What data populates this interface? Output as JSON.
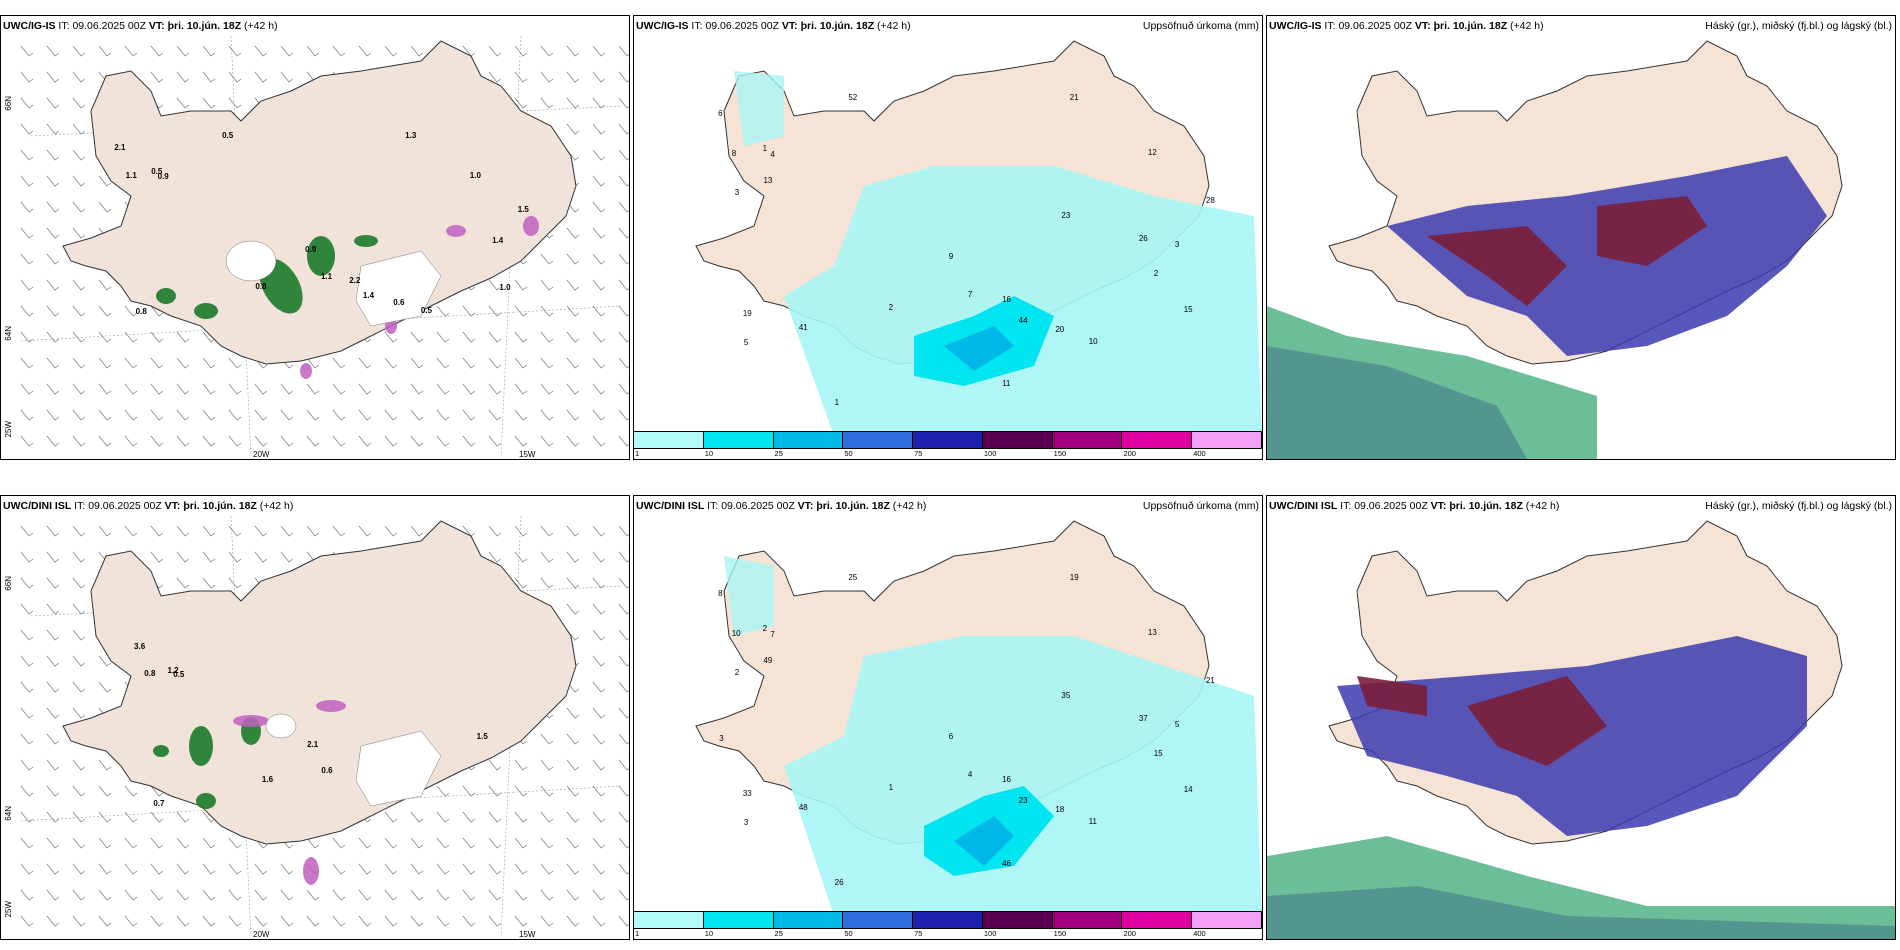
{
  "panels": [
    {
      "model": "UWC/IG-IS",
      "it_label": "IT:",
      "it": "09.06.2025 00Z",
      "vt_label": "VT:",
      "vt": "þri. 10.jún. 18Z",
      "lead": "(+42 h)",
      "right": ""
    },
    {
      "model": "UWC/IG-IS",
      "it_label": "IT:",
      "it": "09.06.2025 00Z",
      "vt_label": "VT:",
      "vt": "þri. 10.jún. 18Z",
      "lead": "(+42 h)",
      "right": "Uppsöfnuð úrkoma (mm)"
    },
    {
      "model": "UWC/IG-IS",
      "it_label": "IT:",
      "it": "09.06.2025 00Z",
      "vt_label": "VT:",
      "vt": "þri. 10.jún. 18Z",
      "lead": "(+42 h)",
      "right": "Háský (gr.), miðský (fj.bl.) og lágský (bl.)"
    },
    {
      "model": "UWC/DINI ISL",
      "it_label": "IT:",
      "it": "09.06.2025 00Z",
      "vt_label": "VT:",
      "vt": "þri. 10.jún. 18Z",
      "lead": "(+42 h)",
      "right": ""
    },
    {
      "model": "UWC/DINI ISL",
      "it_label": "IT:",
      "it": "09.06.2025 00Z",
      "vt_label": "VT:",
      "vt": "þri. 10.jún. 18Z",
      "lead": "(+42 h)",
      "right": "Uppsöfnuð úrkoma (mm)"
    },
    {
      "model": "UWC/DINI ISL",
      "it_label": "IT:",
      "it": "09.06.2025 00Z",
      "vt_label": "VT:",
      "vt": "þri. 10.jún. 18Z",
      "lead": "(+42 h)",
      "right": "Háský (gr.), miðský (fj.bl.) og lágský (bl.)"
    }
  ],
  "axes": {
    "lon_20": "20W",
    "lon_15": "15W",
    "lat_66": "66N",
    "lat_64": "64N",
    "lon_25": "25W"
  },
  "legend": {
    "ticks": [
      "1",
      "10",
      "25",
      "50",
      "75",
      "100",
      "150",
      "200",
      "400"
    ],
    "colors": [
      "#b5fafa",
      "#00e5ef",
      "#00b8e8",
      "#2f6fdd",
      "#2020b0",
      "#5a0050",
      "#a0007e",
      "#e000a0",
      "#f4a0f4"
    ]
  },
  "precip_values_top": [
    "1",
    "2",
    "5",
    "3",
    "4",
    "7",
    "9",
    "6",
    "8",
    "10",
    "12",
    "15",
    "16",
    "20",
    "21",
    "28",
    "44",
    "52",
    "19",
    "23",
    "41",
    "13",
    "11",
    "26",
    "1",
    "2",
    "3"
  ],
  "precip_values_bottom": [
    "2",
    "1",
    "3",
    "5",
    "7",
    "4",
    "6",
    "8",
    "10",
    "11",
    "13",
    "14",
    "16",
    "18",
    "19",
    "21",
    "23",
    "25",
    "33",
    "35",
    "48",
    "49",
    "46",
    "37",
    "26",
    "15",
    "2",
    "3"
  ],
  "wind_labels_top": [
    "0.5",
    "0.8",
    "0.8",
    "1.4",
    "0.9",
    "1.1",
    "0.9",
    "2.1",
    "1.1",
    "0.5",
    "1.0",
    "1.0",
    "2.2",
    "0.6",
    "1.3",
    "1.5",
    "1.4",
    "0.5"
  ],
  "wind_labels_bottom": [
    "1.2",
    "1.6",
    "0.7",
    "1.5",
    "0.5",
    "0.6",
    "2.1",
    "3.6",
    "0.8"
  ],
  "colors": {
    "land": "#f5e3d6",
    "land_alt": "#f1e3da",
    "sea": "#ffffff",
    "green": "#1c7a2a",
    "purple": "#c060c0",
    "cyan": "#a8f5f5",
    "cloud_high": "#7a1e3a",
    "cloud_mid": "#3b3bb0",
    "cloud_low": "#2ea36e"
  }
}
